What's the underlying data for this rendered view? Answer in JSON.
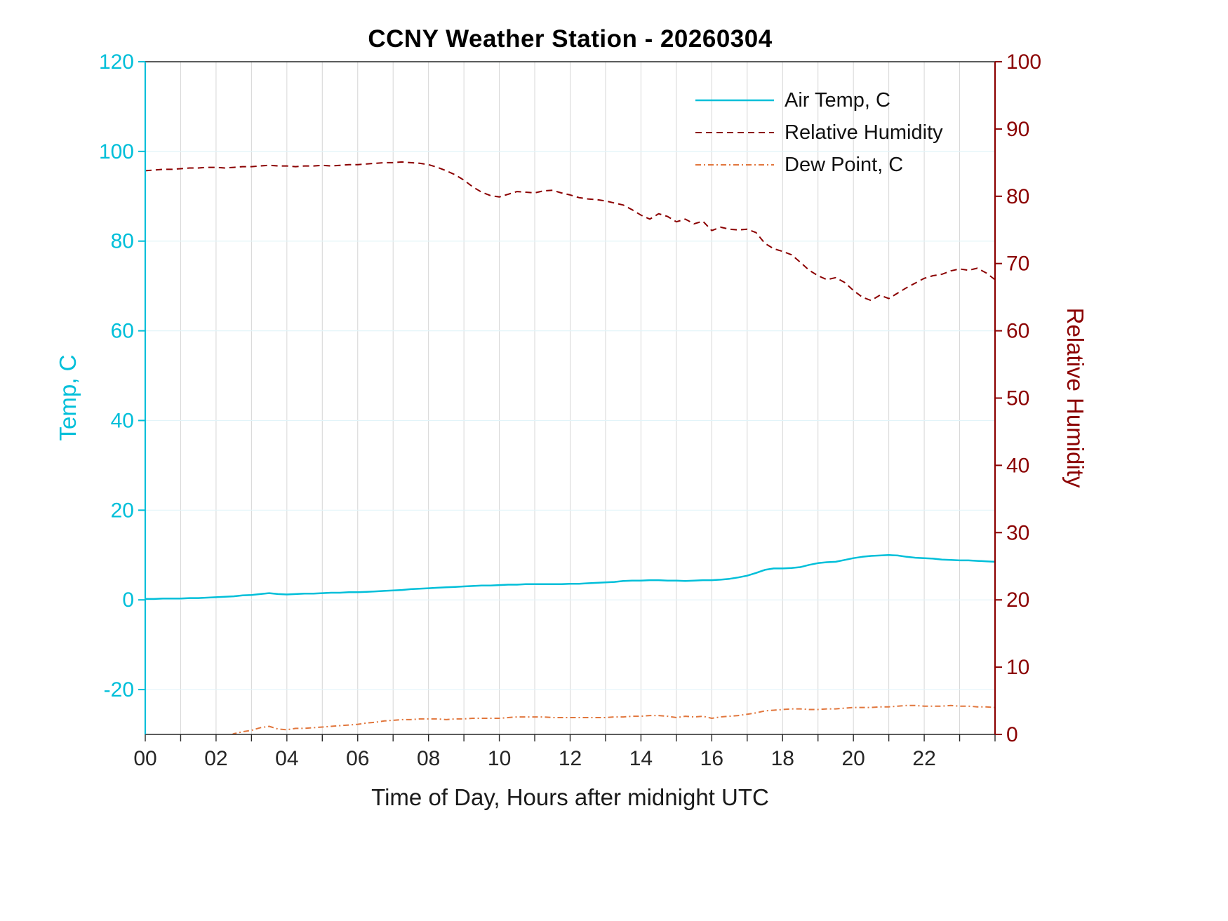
{
  "chart_data": {
    "type": "line",
    "title": "CCNY Weather Station - 20260304",
    "xlabel": "Time of Day, Hours after midnight UTC",
    "ylabel_left": "Temp, C",
    "ylabel_right": "Relative Humidity",
    "xlim": [
      0,
      24
    ],
    "ylim_left": [
      -30,
      120
    ],
    "ylim_right": [
      0,
      100
    ],
    "x_ticks": [
      0,
      2,
      4,
      6,
      8,
      10,
      12,
      14,
      16,
      18,
      20,
      22
    ],
    "x_tick_labels": [
      "00",
      "02",
      "04",
      "06",
      "08",
      "10",
      "12",
      "14",
      "16",
      "18",
      "20",
      "22"
    ],
    "left_ticks": [
      -20,
      0,
      20,
      40,
      60,
      80,
      100,
      120
    ],
    "right_ticks": [
      0,
      10,
      20,
      30,
      40,
      50,
      60,
      70,
      80,
      90,
      100
    ],
    "grid": true,
    "legend_position": "top-right-inside",
    "colors": {
      "air_temp": "#00BFD9",
      "humidity": "#8B0000",
      "dew_point": "#E1763C",
      "x_axis": "#262626",
      "grid_vertical": "#d6d6d6",
      "grid_horizontal": "#e2f4f9"
    },
    "x_start": 0,
    "x_step": 0.25,
    "series": [
      {
        "name": "Air Temp, C",
        "axis": "left",
        "style": "solid",
        "color_key": "air_temp",
        "values": [
          0.2,
          0.2,
          0.3,
          0.3,
          0.3,
          0.4,
          0.4,
          0.5,
          0.6,
          0.7,
          0.8,
          1.0,
          1.1,
          1.3,
          1.5,
          1.3,
          1.2,
          1.3,
          1.4,
          1.4,
          1.5,
          1.6,
          1.6,
          1.7,
          1.7,
          1.8,
          1.9,
          2.0,
          2.1,
          2.2,
          2.4,
          2.5,
          2.6,
          2.7,
          2.8,
          2.9,
          3.0,
          3.1,
          3.2,
          3.2,
          3.3,
          3.4,
          3.4,
          3.5,
          3.5,
          3.5,
          3.5,
          3.5,
          3.6,
          3.6,
          3.7,
          3.8,
          3.9,
          4.0,
          4.2,
          4.3,
          4.3,
          4.4,
          4.4,
          4.3,
          4.3,
          4.2,
          4.3,
          4.4,
          4.4,
          4.5,
          4.7,
          5.0,
          5.4,
          6.0,
          6.7,
          7.0,
          7.0,
          7.1,
          7.3,
          7.8,
          8.2,
          8.4,
          8.5,
          8.9,
          9.3,
          9.6,
          9.8,
          9.9,
          10.0,
          9.9,
          9.6,
          9.4,
          9.3,
          9.2,
          9.0,
          8.9,
          8.8,
          8.8,
          8.7,
          8.6,
          8.5
        ]
      },
      {
        "name": "Relative Humidity",
        "axis": "right",
        "style": "dashed",
        "color_key": "humidity",
        "values": [
          83.8,
          83.9,
          84.0,
          84.0,
          84.1,
          84.2,
          84.2,
          84.3,
          84.3,
          84.2,
          84.3,
          84.4,
          84.4,
          84.5,
          84.6,
          84.5,
          84.5,
          84.4,
          84.5,
          84.5,
          84.6,
          84.5,
          84.6,
          84.7,
          84.7,
          84.8,
          84.9,
          85.0,
          85.0,
          85.1,
          85.0,
          84.9,
          84.7,
          84.3,
          83.8,
          83.2,
          82.4,
          81.4,
          80.6,
          80.1,
          79.9,
          80.3,
          80.7,
          80.6,
          80.5,
          80.8,
          80.9,
          80.5,
          80.2,
          79.8,
          79.6,
          79.5,
          79.3,
          79.0,
          78.7,
          78.0,
          77.2,
          76.6,
          77.4,
          77.0,
          76.2,
          76.6,
          75.9,
          76.3,
          74.9,
          75.4,
          75.1,
          75.0,
          75.1,
          74.6,
          73.0,
          72.2,
          71.8,
          71.3,
          70.2,
          69.0,
          68.2,
          67.6,
          67.9,
          67.2,
          66.0,
          65.0,
          64.5,
          65.3,
          64.8,
          65.6,
          66.4,
          67.1,
          67.8,
          68.2,
          68.4,
          68.9,
          69.2,
          69.0,
          69.3,
          68.6,
          67.6
        ]
      },
      {
        "name": "Dew Point, C",
        "axis": "right",
        "style": "dashdot",
        "color_key": "dew_point",
        "values": [
          -2.4,
          -2.3,
          -2.2,
          -2.1,
          -2.0,
          -1.9,
          -1.7,
          -1.5,
          -1.2,
          -0.6,
          0.1,
          0.4,
          0.6,
          1.0,
          1.2,
          0.8,
          0.7,
          0.9,
          0.9,
          1.0,
          1.1,
          1.2,
          1.3,
          1.4,
          1.5,
          1.7,
          1.8,
          2.0,
          2.1,
          2.2,
          2.2,
          2.3,
          2.3,
          2.3,
          2.2,
          2.3,
          2.3,
          2.4,
          2.4,
          2.4,
          2.4,
          2.5,
          2.6,
          2.6,
          2.6,
          2.6,
          2.5,
          2.5,
          2.5,
          2.5,
          2.5,
          2.5,
          2.5,
          2.6,
          2.6,
          2.7,
          2.7,
          2.8,
          2.8,
          2.7,
          2.5,
          2.7,
          2.6,
          2.7,
          2.4,
          2.6,
          2.7,
          2.8,
          3.0,
          3.2,
          3.5,
          3.6,
          3.7,
          3.8,
          3.8,
          3.7,
          3.7,
          3.8,
          3.8,
          3.9,
          4.0,
          4.0,
          4.0,
          4.1,
          4.1,
          4.2,
          4.3,
          4.3,
          4.2,
          4.2,
          4.2,
          4.3,
          4.2,
          4.2,
          4.1,
          4.1,
          4.0
        ]
      }
    ]
  }
}
